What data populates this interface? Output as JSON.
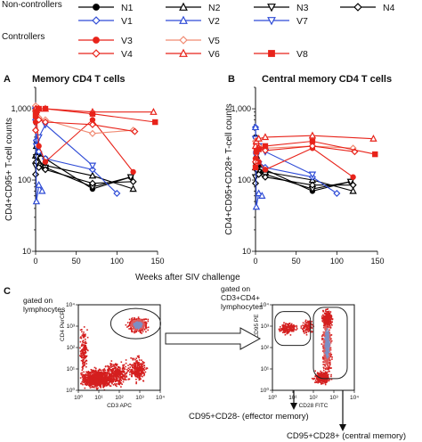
{
  "legend": {
    "groups": [
      {
        "label": "Non-controllers",
        "entries": [
          "N1",
          "N2",
          "N3",
          "N4",
          "V1",
          "V2",
          "V7"
        ]
      },
      {
        "label": "Controllers",
        "entries": [
          "V3",
          "V5",
          "V4",
          "V6",
          "V8"
        ]
      }
    ],
    "items": [
      {
        "id": "N1",
        "label": "N1",
        "color": "#000000",
        "marker": "circle",
        "filled": true
      },
      {
        "id": "N2",
        "label": "N2",
        "color": "#000000",
        "marker": "triangle-up",
        "filled": false
      },
      {
        "id": "N3",
        "label": "N3",
        "color": "#000000",
        "marker": "triangle-down",
        "filled": false
      },
      {
        "id": "N4",
        "label": "N4",
        "color": "#000000",
        "marker": "diamond",
        "filled": false
      },
      {
        "id": "V1",
        "label": "V1",
        "color": "#2e4bd6",
        "marker": "diamond",
        "filled": false
      },
      {
        "id": "V2",
        "label": "V2",
        "color": "#2e4bd6",
        "marker": "triangle-up",
        "filled": false
      },
      {
        "id": "V7",
        "label": "V7",
        "color": "#2e4bd6",
        "marker": "triangle-down",
        "filled": false
      },
      {
        "id": "V3",
        "label": "V3",
        "color": "#e8231a",
        "marker": "circle",
        "filled": true
      },
      {
        "id": "V5",
        "label": "V5",
        "color": "#f08a72",
        "marker": "diamond",
        "filled": false
      },
      {
        "id": "V4",
        "label": "V4",
        "color": "#e8231a",
        "marker": "diamond",
        "filled": false
      },
      {
        "id": "V6",
        "label": "V6",
        "color": "#e8231a",
        "marker": "triangle-up",
        "filled": false
      },
      {
        "id": "V8",
        "label": "V8",
        "color": "#e8231a",
        "marker": "square",
        "filled": true
      }
    ]
  },
  "panels": {
    "a": {
      "letter": "A",
      "title": "Memory CD4 T cells"
    },
    "b": {
      "letter": "B",
      "title": "Central memory CD4 T cells"
    },
    "c": {
      "letter": "C"
    }
  },
  "shared_xlabel": "Weeks after SIV challenge",
  "chart_data": [
    {
      "type": "line",
      "title": "Memory CD4 T cells",
      "ylabel": "CD4+CD95+ T-cell counts",
      "xlabel": "Weeks after SIV challenge",
      "yscale": "log",
      "xlim": [
        0,
        150
      ],
      "ylim": [
        10,
        2000
      ],
      "xticks": [
        0,
        50,
        100,
        150
      ],
      "yticks": [
        10,
        100,
        1000
      ],
      "ytick_labels": [
        "10",
        "100",
        "1,000"
      ],
      "series": [
        {
          "name": "N1",
          "x": [
            0,
            1,
            4,
            12,
            70,
            117
          ],
          "y": [
            900,
            350,
            230,
            200,
            75,
            110
          ]
        },
        {
          "name": "N2",
          "x": [
            0,
            1,
            4,
            12,
            70,
            120
          ],
          "y": [
            220,
            300,
            180,
            160,
            115,
            75
          ]
        },
        {
          "name": "N3",
          "x": [
            0,
            1,
            4,
            12,
            70,
            117
          ],
          "y": [
            160,
            210,
            160,
            150,
            80,
            110
          ]
        },
        {
          "name": "N4",
          "x": [
            0,
            1,
            4,
            12,
            70,
            120
          ],
          "y": [
            120,
            180,
            150,
            140,
            90,
            95
          ]
        },
        {
          "name": "V1",
          "x": [
            0,
            1,
            4,
            12,
            70,
            100
          ],
          "y": [
            700,
            360,
            250,
            200,
            140,
            65
          ]
        },
        {
          "name": "V2",
          "x": [
            0,
            1,
            4,
            8
          ],
          "y": [
            1100,
            50,
            85,
            70
          ]
        },
        {
          "name": "V7",
          "x": [
            0,
            1,
            4,
            12,
            70
          ],
          "y": [
            1000,
            300,
            400,
            600,
            160
          ]
        },
        {
          "name": "V3",
          "x": [
            0,
            1,
            4,
            12,
            70,
            120
          ],
          "y": [
            650,
            750,
            300,
            180,
            700,
            130
          ]
        },
        {
          "name": "V5",
          "x": [
            0,
            1,
            4,
            12,
            70,
            120
          ],
          "y": [
            1100,
            900,
            750,
            700,
            450,
            500
          ]
        },
        {
          "name": "V4",
          "x": [
            0,
            1,
            4,
            12,
            70,
            122
          ],
          "y": [
            500,
            1000,
            700,
            650,
            600,
            480
          ]
        },
        {
          "name": "V6",
          "x": [
            0,
            1,
            4,
            12,
            70,
            145
          ],
          "y": [
            1000,
            950,
            1000,
            1000,
            900,
            900
          ]
        },
        {
          "name": "V8",
          "x": [
            0,
            1,
            4,
            12,
            70,
            147
          ],
          "y": [
            800,
            900,
            1000,
            1000,
            850,
            650
          ]
        }
      ]
    },
    {
      "type": "line",
      "title": "Central memory CD4 T cells",
      "ylabel": "CD4+CD95+CD28+ T-cell counts",
      "xlabel": "Weeks after SIV challenge",
      "yscale": "log",
      "xlim": [
        0,
        150
      ],
      "ylim": [
        10,
        2000
      ],
      "xticks": [
        0,
        50,
        100,
        150
      ],
      "yticks": [
        10,
        100,
        1000
      ],
      "ytick_labels": [
        "10",
        "100",
        "1,000"
      ],
      "series": [
        {
          "name": "N1",
          "x": [
            0,
            1,
            4,
            12,
            70,
            117
          ],
          "y": [
            400,
            200,
            160,
            140,
            70,
            95
          ]
        },
        {
          "name": "N2",
          "x": [
            0,
            1,
            4,
            12,
            70,
            120
          ],
          "y": [
            150,
            220,
            140,
            130,
            100,
            70
          ]
        },
        {
          "name": "N3",
          "x": [
            0,
            1,
            4,
            12,
            70,
            117
          ],
          "y": [
            110,
            160,
            130,
            120,
            75,
            95
          ]
        },
        {
          "name": "N4",
          "x": [
            0,
            1,
            4,
            12,
            70,
            120
          ],
          "y": [
            90,
            140,
            120,
            110,
            85,
            85
          ]
        },
        {
          "name": "V1",
          "x": [
            0,
            1,
            4,
            12,
            70,
            100
          ],
          "y": [
            550,
            250,
            180,
            150,
            110,
            65
          ]
        },
        {
          "name": "V2",
          "x": [
            0,
            1,
            4,
            8
          ],
          "y": [
            550,
            42,
            65,
            60
          ]
        },
        {
          "name": "V7",
          "x": [
            0,
            1,
            4,
            12,
            70
          ],
          "y": [
            380,
            220,
            300,
            250,
            120
          ]
        },
        {
          "name": "V3",
          "x": [
            0,
            1,
            4,
            12,
            70,
            120
          ],
          "y": [
            200,
            300,
            180,
            140,
            280,
            110
          ]
        },
        {
          "name": "V5",
          "x": [
            0,
            1,
            4,
            12,
            70,
            120
          ],
          "y": [
            350,
            320,
            300,
            280,
            300,
            280
          ]
        },
        {
          "name": "V4",
          "x": [
            0,
            1,
            4,
            12,
            70,
            122
          ],
          "y": [
            180,
            320,
            280,
            260,
            300,
            250
          ]
        },
        {
          "name": "V6",
          "x": [
            0,
            1,
            4,
            12,
            70,
            145
          ],
          "y": [
            300,
            350,
            380,
            400,
            420,
            380
          ]
        },
        {
          "name": "V8",
          "x": [
            0,
            1,
            4,
            12,
            70,
            147
          ],
          "y": [
            150,
            250,
            270,
            300,
            350,
            230
          ]
        }
      ]
    }
  ],
  "facs": {
    "left_note": "gated on\nlymphocytes",
    "right_note": "gated on\nCD3+CD4+\nlymphocytes",
    "left_ylabel": "CD4 PerCP",
    "left_xlabel": "CD3 APC",
    "right_ylabel": "CD95 PE",
    "right_xlabel": "CD28 FITC",
    "ticks": [
      "10⁰",
      "10¹",
      "10²",
      "10³",
      "10⁴"
    ],
    "effector_label": "CD95+CD28- (effector memory)",
    "central_label": "CD95+CD28+ (central memory)"
  }
}
